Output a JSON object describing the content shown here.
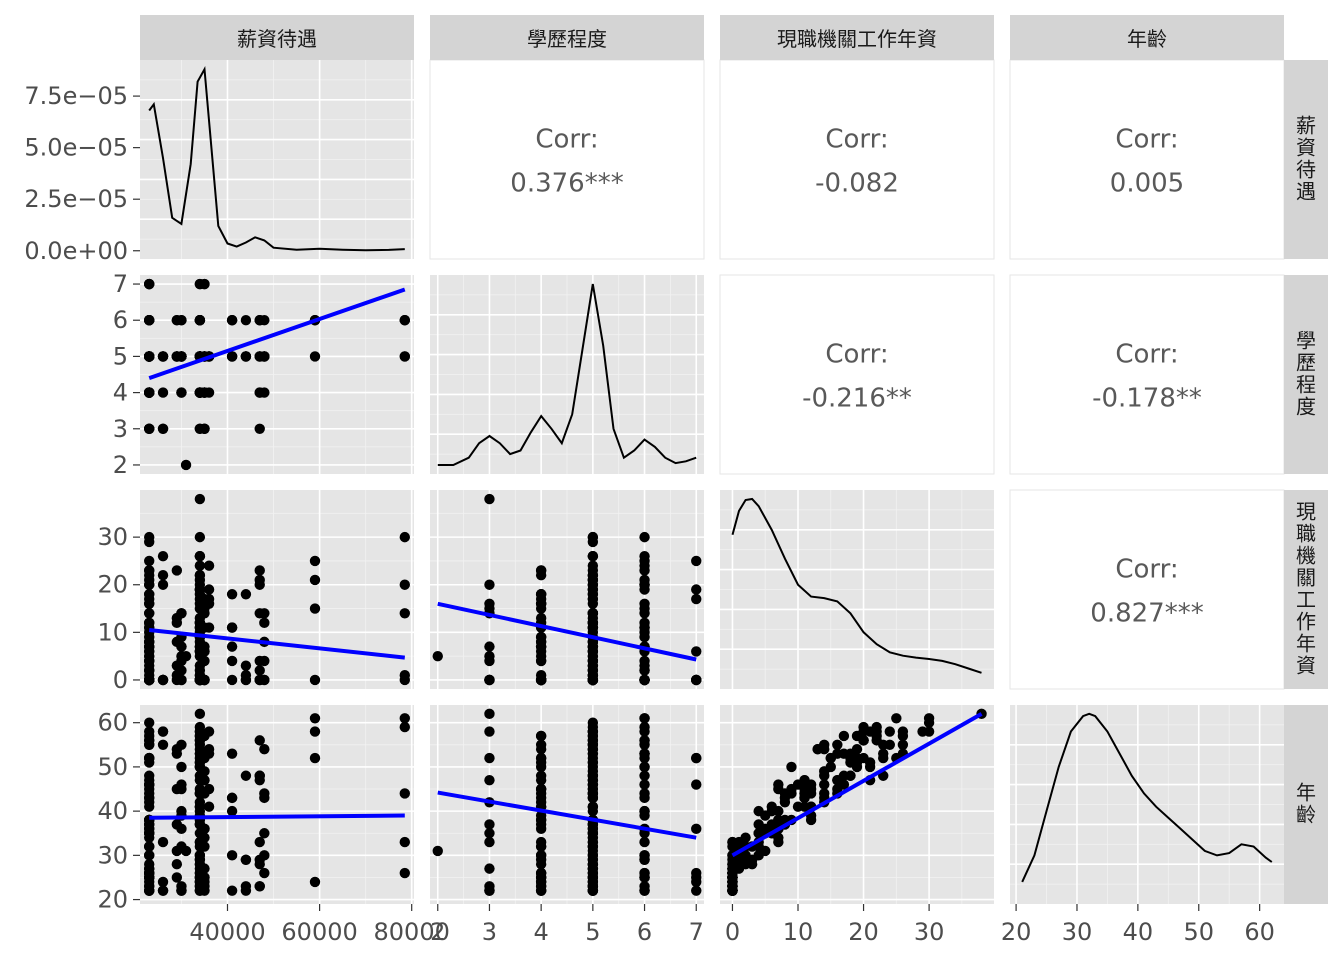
{
  "variables": [
    "薪資待遇",
    "學歷程度",
    "現職機關工作年資",
    "年齡"
  ],
  "chart_data": {
    "type": "scatter",
    "layout": "pair-matrix",
    "variables": [
      "薪資待遇",
      "學歷程度",
      "現職機關工作年資",
      "年齡"
    ],
    "axes": {
      "x": [
        {
          "var": "薪資待遇",
          "lim": [
            21000,
            80500
          ],
          "ticks": [
            40000,
            60000,
            80000
          ],
          "tick_labels": [
            "40000",
            "60000",
            "80000"
          ],
          "minor": [
            30000,
            50000,
            70000
          ]
        },
        {
          "var": "學歷程度",
          "lim": [
            1.85,
            7.15
          ],
          "ticks": [
            2,
            3,
            4,
            5,
            6,
            7
          ],
          "tick_labels": [
            "2",
            "3",
            "4",
            "5",
            "6",
            "7"
          ],
          "minor": [
            2.5,
            3.5,
            4.5,
            5.5,
            6.5
          ]
        },
        {
          "var": "現職機關工作年資",
          "lim": [
            -1.9,
            39.9
          ],
          "ticks": [
            0,
            10,
            20,
            30
          ],
          "tick_labels": [
            "0",
            "10",
            "20",
            "30"
          ],
          "minor": [
            5,
            15,
            25,
            35
          ]
        },
        {
          "var": "年齡",
          "lim": [
            19,
            64
          ],
          "ticks": [
            20,
            30,
            40,
            50,
            60
          ],
          "tick_labels": [
            "20",
            "30",
            "40",
            "50",
            "60"
          ],
          "minor": [
            25,
            35,
            45,
            55
          ]
        }
      ],
      "y": [
        {
          "var": "薪資待遇",
          "lim": [
            -4e-06,
            9.25e-05
          ],
          "ticks": [
            0,
            2.5e-05,
            5e-05,
            7.5e-05
          ],
          "tick_labels": [
            "0.0e+00",
            "2.5e−05",
            "5.0e−05",
            "7.5e−05"
          ],
          "minor": [
            1.25e-05,
            3.75e-05,
            6.25e-05,
            8.75e-05
          ]
        },
        {
          "var": "學歷程度",
          "lim": [
            1.75,
            7.25
          ],
          "ticks": [
            2,
            3,
            4,
            5,
            6,
            7
          ],
          "tick_labels": [
            "2",
            "3",
            "4",
            "5",
            "6",
            "7"
          ],
          "minor": [
            2.5,
            3.5,
            4.5,
            5.5,
            6.5
          ]
        },
        {
          "var": "現職機關工作年資",
          "lim": [
            -1.9,
            39.9
          ],
          "ticks": [
            0,
            10,
            20,
            30
          ],
          "tick_labels": [
            "0",
            "10",
            "20",
            "30"
          ],
          "minor": [
            5,
            15,
            25,
            35
          ]
        },
        {
          "var": "年齡",
          "lim": [
            19,
            64
          ],
          "ticks": [
            20,
            30,
            40,
            50,
            60
          ],
          "tick_labels": [
            "20",
            "30",
            "40",
            "50",
            "60"
          ],
          "minor": [
            25,
            35,
            45,
            55
          ]
        }
      ]
    },
    "correlations": [
      {
        "row": 0,
        "col": 1,
        "label": "Corr:",
        "value": "0.376***"
      },
      {
        "row": 0,
        "col": 2,
        "label": "Corr:",
        "value": "-0.082"
      },
      {
        "row": 0,
        "col": 3,
        "label": "Corr:",
        "value": "0.005"
      },
      {
        "row": 1,
        "col": 2,
        "label": "Corr:",
        "value": "-0.216**"
      },
      {
        "row": 1,
        "col": 3,
        "label": "Corr:",
        "value": "-0.178**"
      },
      {
        "row": 2,
        "col": 3,
        "label": "Corr:",
        "value": "0.827***"
      }
    ],
    "fits": [
      {
        "row": 1,
        "col": 0,
        "x": [
          23000,
          78500
        ],
        "y": [
          4.4,
          6.85
        ]
      },
      {
        "row": 2,
        "col": 0,
        "x": [
          23000,
          78500
        ],
        "y": [
          10.5,
          4.7
        ]
      },
      {
        "row": 2,
        "col": 1,
        "x": [
          2,
          7
        ],
        "y": [
          16,
          4.3
        ]
      },
      {
        "row": 3,
        "col": 0,
        "x": [
          23000,
          78500
        ],
        "y": [
          38.5,
          39
        ]
      },
      {
        "row": 3,
        "col": 1,
        "x": [
          2,
          7
        ],
        "y": [
          44.2,
          34
        ]
      },
      {
        "row": 3,
        "col": 2,
        "x": [
          0,
          38
        ],
        "y": [
          30,
          62
        ]
      }
    ],
    "densities": [
      {
        "diag": 0,
        "x": [
          23000,
          24000,
          26000,
          28000,
          30000,
          32000,
          33500,
          35000,
          36500,
          38000,
          40000,
          42000,
          44000,
          46000,
          48000,
          50000,
          55000,
          60000,
          65000,
          70000,
          75000,
          78500
        ],
        "y": [
          6.8e-05,
          7.1e-05,
          4.5e-05,
          1.6e-05,
          1.3e-05,
          4.2e-05,
          8.2e-05,
          8.8e-05,
          5e-05,
          1.2e-05,
          3.5e-06,
          2e-06,
          4e-06,
          6.5e-06,
          5e-06,
          1.5e-06,
          5e-07,
          1e-06,
          5e-07,
          2e-07,
          4e-07,
          8e-07
        ]
      },
      {
        "diag": 1,
        "x": [
          2,
          2.3,
          2.6,
          2.8,
          3,
          3.2,
          3.4,
          3.6,
          3.8,
          4,
          4.2,
          4.4,
          4.6,
          4.8,
          5,
          5.2,
          5.4,
          5.6,
          5.8,
          6,
          6.2,
          6.4,
          6.6,
          6.8,
          7
        ],
        "y": [
          2.0,
          2.0,
          2.2,
          2.6,
          2.8,
          2.6,
          2.3,
          2.4,
          2.9,
          3.35,
          3.0,
          2.6,
          3.4,
          5.2,
          7.0,
          5.3,
          3.0,
          2.2,
          2.4,
          2.7,
          2.5,
          2.2,
          2.05,
          2.1,
          2.2
        ]
      },
      {
        "diag": 2,
        "x": [
          0,
          1,
          2,
          3,
          4,
          6,
          8,
          10,
          12,
          14,
          16,
          18,
          20,
          22,
          24,
          26,
          28,
          30,
          32,
          34,
          36,
          38
        ],
        "y": [
          30.5,
          35.5,
          37.8,
          38.0,
          36.5,
          31.5,
          25.5,
          20.0,
          17.5,
          17.2,
          16.5,
          14.0,
          10.0,
          7.5,
          5.8,
          5.1,
          4.7,
          4.4,
          4.0,
          3.3,
          2.4,
          1.5
        ]
      },
      {
        "diag": 3,
        "x": [
          21,
          23,
          25,
          27,
          29,
          31,
          32,
          33,
          35,
          37,
          39,
          41,
          43,
          45,
          47,
          49,
          51,
          53,
          55,
          57,
          59,
          61,
          62
        ],
        "y": [
          24,
          30,
          40,
          50,
          58,
          61.5,
          62,
          61.5,
          58,
          53,
          48,
          44,
          41,
          38.5,
          36,
          33.5,
          31,
          30,
          30.5,
          32.5,
          32,
          29.5,
          28.5
        ]
      }
    ]
  }
}
